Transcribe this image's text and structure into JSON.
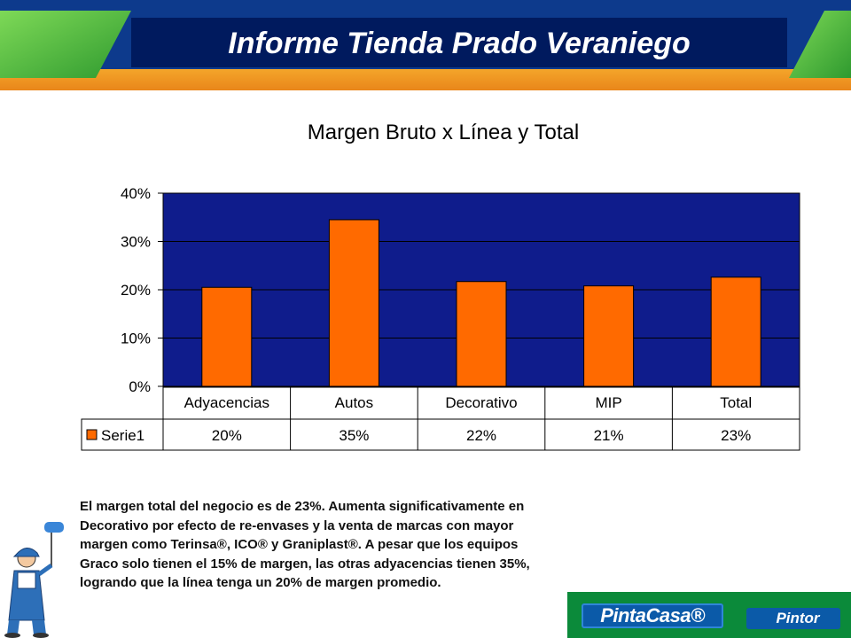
{
  "header": {
    "title": "Informe Tienda Prado Veraniego"
  },
  "chart_data": {
    "type": "bar",
    "title": "Margen Bruto x Línea y Total",
    "categories": [
      "Adyacencias",
      "Autos",
      "Decorativo",
      "MIP",
      "Total"
    ],
    "series": [
      {
        "name": "Serie1",
        "values": [
          0.205,
          0.345,
          0.217,
          0.208,
          0.226
        ],
        "table_labels": [
          "20%",
          "35%",
          "22%",
          "21%",
          "23%"
        ]
      }
    ],
    "y_ticks": [
      "0%",
      "10%",
      "20%",
      "30%",
      "40%"
    ],
    "ylim": [
      0,
      0.4
    ],
    "grid": true,
    "legend": "data-table-left",
    "colors": {
      "plot_bg": "#0f1c8c",
      "bar": "#ff6a00",
      "grid": "#000000"
    }
  },
  "paragraph": "El margen total del negocio es de 23%. Aumenta significativamente en Decorativo por efecto de re-envases y la venta de marcas con mayor margen como Terinsa®, ICO® y Graniplast®. A pesar que los equipos Graco solo tienen el 15% de margen, las otras adyacencias tienen 35%, logrando que la línea tenga un 20% de margen promedio.",
  "footer": {
    "brand_left": "PintaCasa®",
    "brand_right": "Pintor"
  },
  "icons": {
    "mascot": "painter-mascot-icon",
    "roller": "paint-roller-icon"
  }
}
